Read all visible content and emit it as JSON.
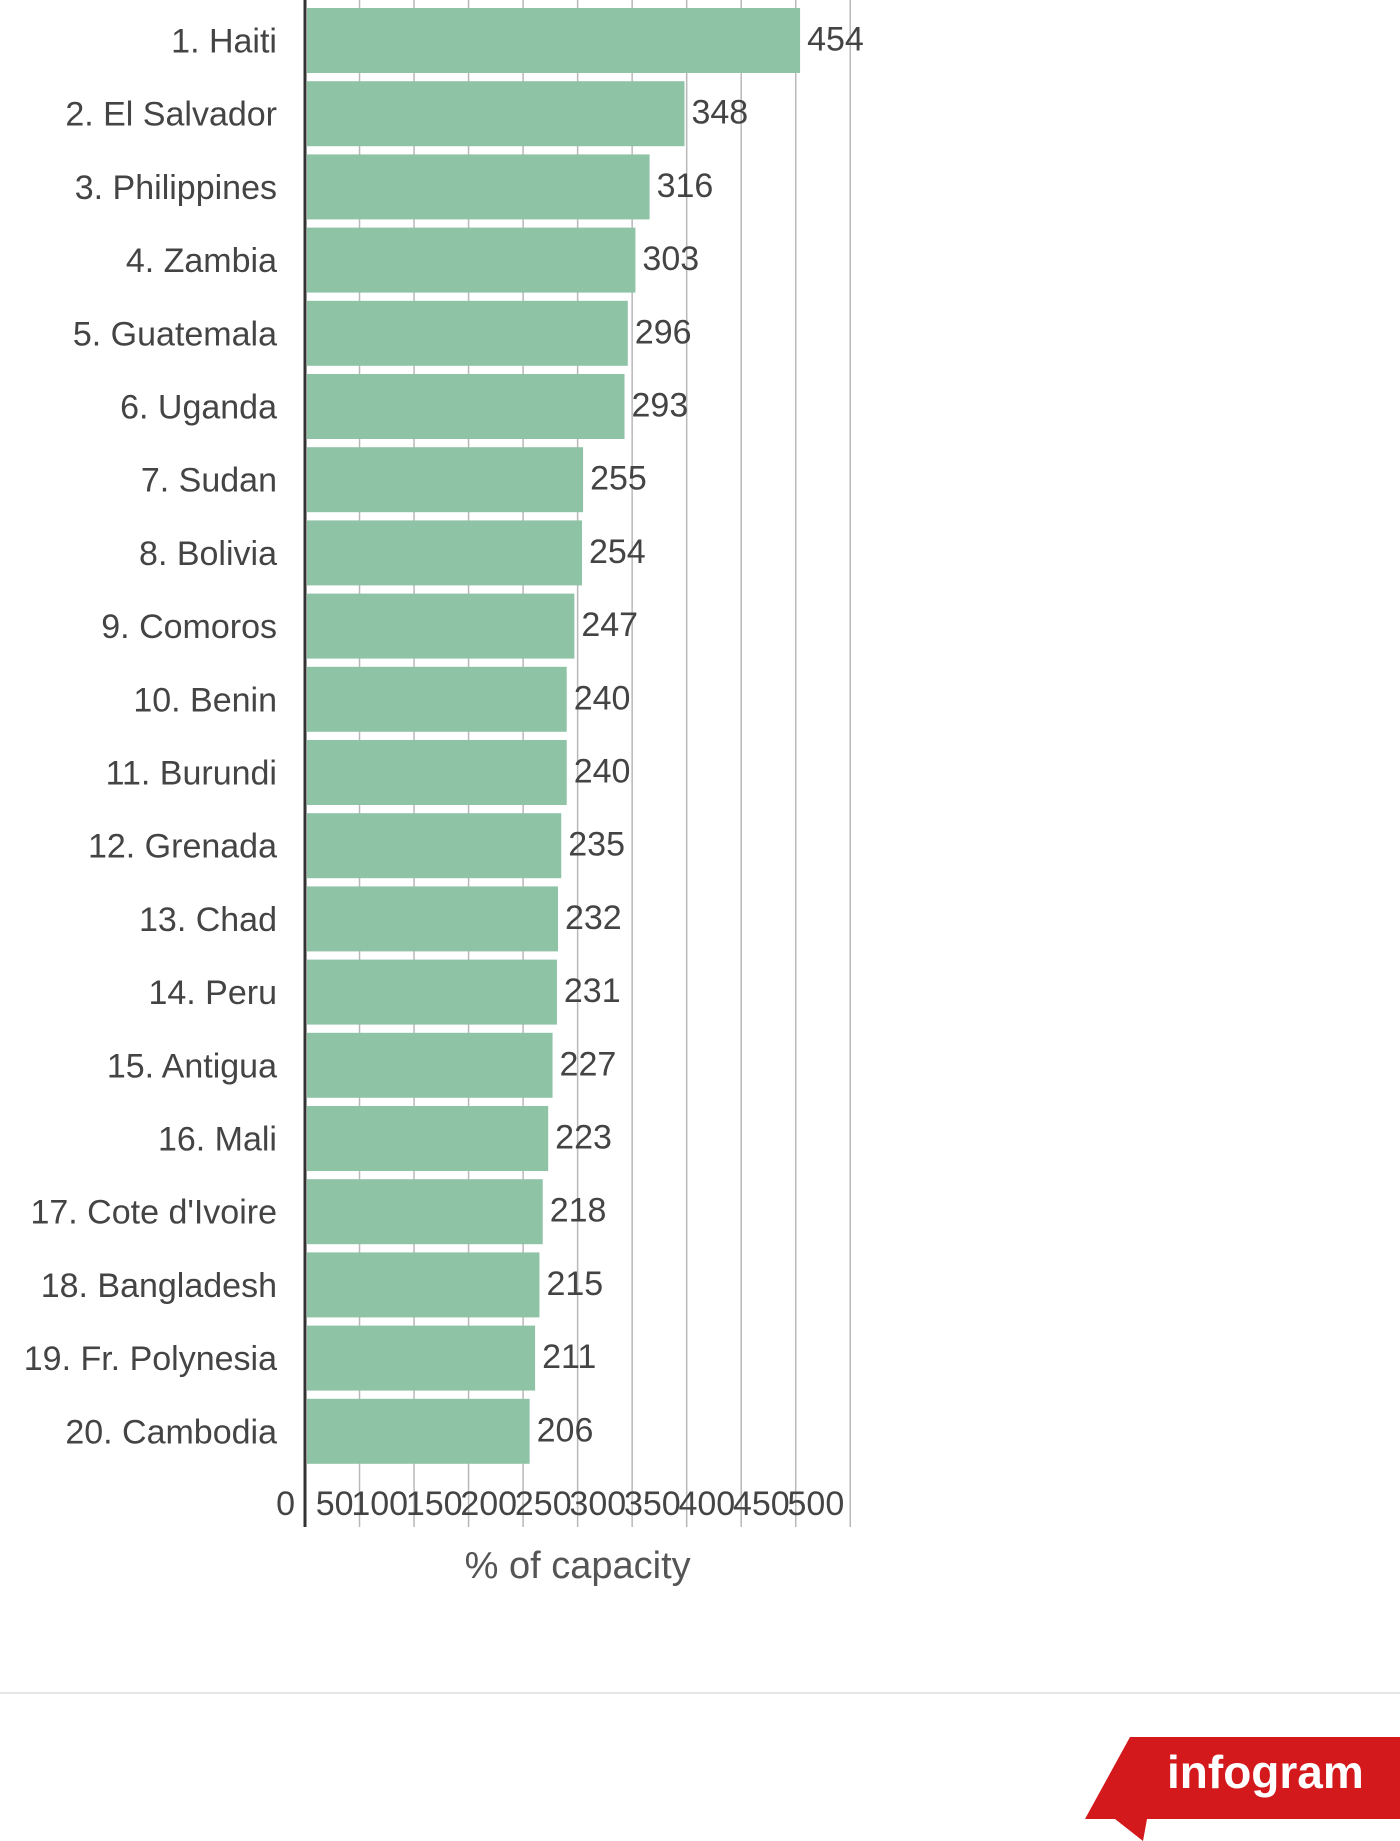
{
  "chart_data": {
    "type": "bar",
    "orientation": "horizontal",
    "categories": [
      "1. Haiti",
      "2. El Salvador",
      "3. Philippines",
      "4. Zambia",
      "5. Guatemala",
      "6. Uganda",
      "7. Sudan",
      "8. Bolivia",
      "9. Comoros",
      "10. Benin",
      "11. Burundi",
      "12. Grenada",
      "13. Chad",
      "14. Peru",
      "15. Antigua",
      "16. Mali",
      "17. Cote d'Ivoire",
      "18. Bangladesh",
      "19. Fr. Polynesia",
      "20. Cambodia"
    ],
    "values": [
      454,
      348,
      316,
      303,
      296,
      293,
      255,
      254,
      247,
      240,
      240,
      235,
      232,
      231,
      227,
      223,
      218,
      215,
      211,
      206
    ],
    "xlim": [
      0,
      500
    ],
    "xticks": [
      0,
      50,
      100,
      150,
      200,
      250,
      300,
      350,
      400,
      450,
      500
    ],
    "xlabel": "% of capacity",
    "ylabel": "",
    "title": "",
    "grid": "vertical",
    "legend": "none",
    "bar_color": "#8fc3a6",
    "grid_color": "#b8b8b8",
    "axis_color": "#333333",
    "text_color": "#444444"
  },
  "branding": {
    "logo_text": "infogram",
    "logo_color": "#d3191c"
  }
}
